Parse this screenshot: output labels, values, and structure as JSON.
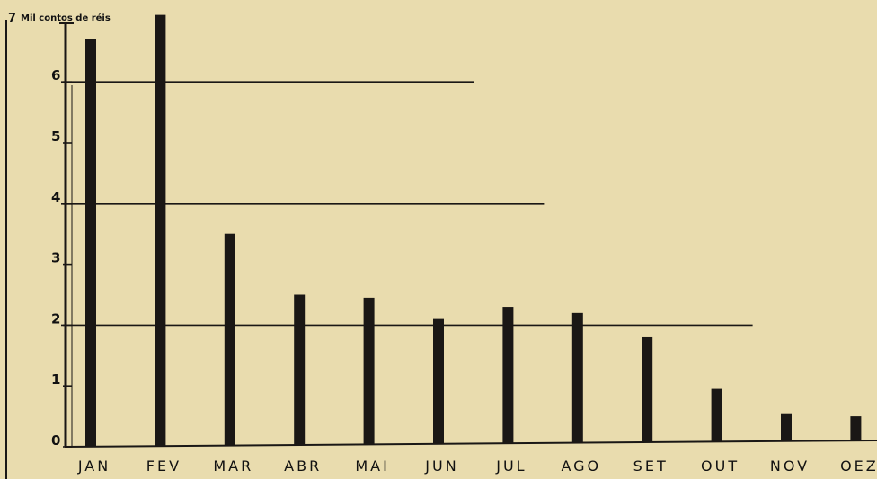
{
  "colors": {
    "background": "#e9dcae",
    "ink": "#1a1715"
  },
  "chart_data": {
    "type": "bar",
    "title": "",
    "xlabel": "",
    "ylabel": "Mil contos de réis",
    "unit_label": {
      "number": "7",
      "text": "Mil contos de réis"
    },
    "categories": [
      "JAN",
      "FEV",
      "MAR",
      "ABR",
      "MAI",
      "JUN",
      "JUL",
      "AGO",
      "SET",
      "OUT",
      "NOV",
      "OEZ"
    ],
    "values": [
      6.7,
      7.1,
      3.5,
      2.5,
      2.45,
      2.1,
      2.3,
      2.2,
      1.8,
      0.95,
      0.55,
      0.5
    ],
    "ylim": [
      0,
      7
    ],
    "y_ticks": [
      0,
      1,
      2,
      3,
      4,
      5,
      6
    ],
    "y_tick_labels": [
      "0",
      "1",
      "2",
      "3",
      "4",
      "5",
      "6"
    ],
    "reference_lines": [
      {
        "y": 6,
        "x_end": "JUN"
      },
      {
        "y": 4,
        "x_end": "JUL"
      },
      {
        "y": 2,
        "x_end": "OUT"
      }
    ],
    "grid": false,
    "legend": "none"
  }
}
